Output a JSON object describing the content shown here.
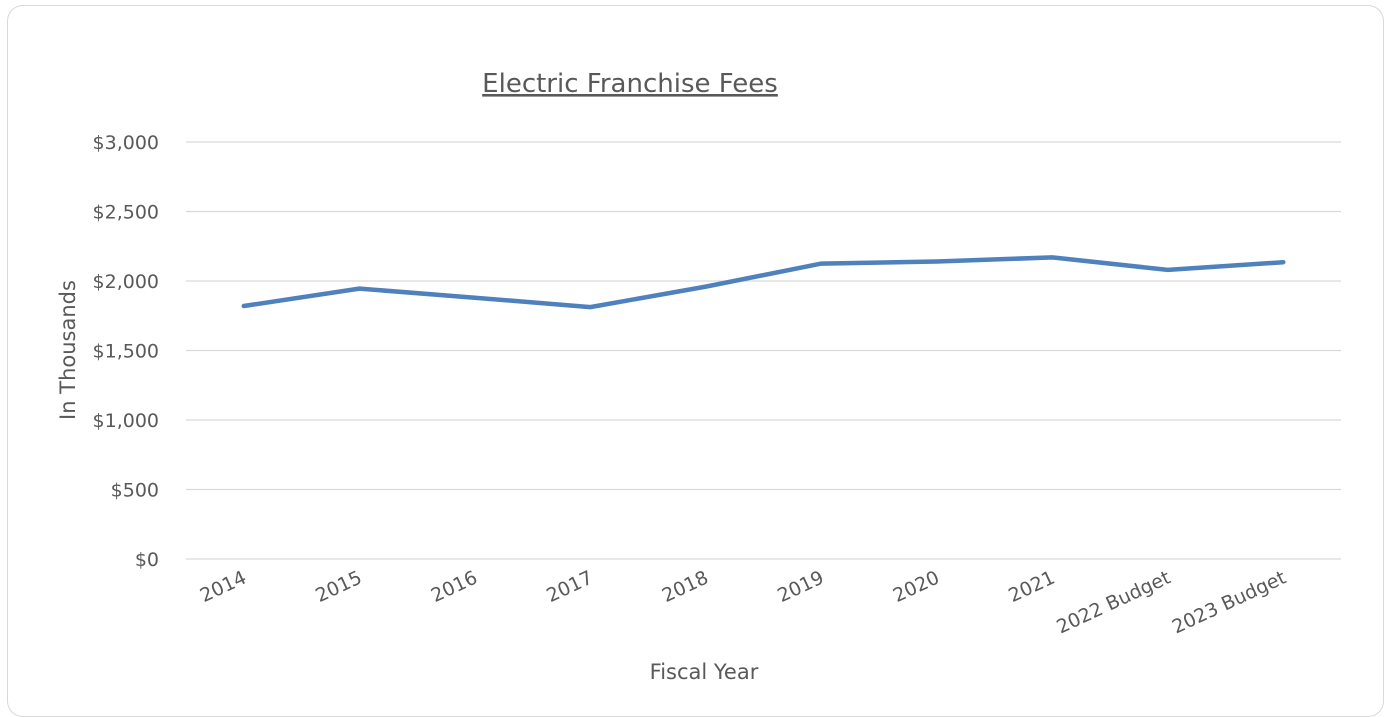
{
  "chart_data": {
    "type": "line",
    "title": "Electric Franchise Fees",
    "xlabel": "Fiscal Year",
    "ylabel": "In Thousands",
    "categories": [
      "2014",
      "2015",
      "2016",
      "2017",
      "2018",
      "2019",
      "2020",
      "2021",
      "2022 Budget",
      "2023 Budget"
    ],
    "series": [
      {
        "values": [
          1820,
          1945,
          1880,
          1812,
          1960,
          2125,
          2140,
          2170,
          2080,
          2135
        ],
        "color": "#4f81bd"
      }
    ],
    "ylim": [
      0,
      3000
    ],
    "y_ticks": [
      0,
      500,
      1000,
      1500,
      2000,
      2500,
      3000
    ],
    "y_tick_labels": [
      "$0",
      "$500",
      "$1,000",
      "$1,500",
      "$2,000",
      "$2,500",
      "$3,000"
    ],
    "grid": true,
    "legend": "none"
  }
}
